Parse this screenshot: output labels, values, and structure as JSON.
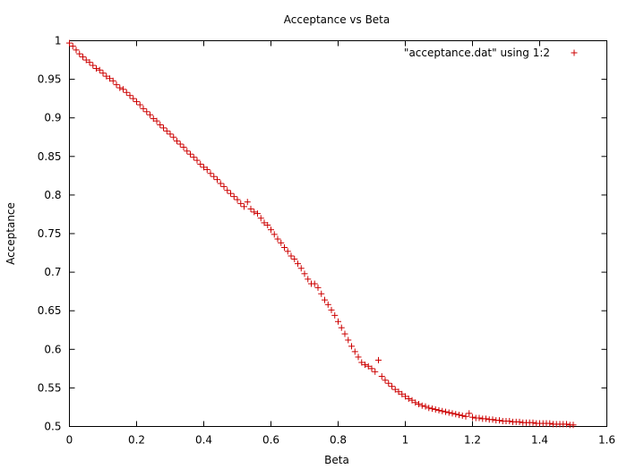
{
  "chart_data": {
    "type": "scatter",
    "title": "Acceptance vs Beta",
    "xlabel": "Beta",
    "ylabel": "Acceptance",
    "xlim": [
      0,
      1.6
    ],
    "ylim": [
      0.5,
      1
    ],
    "xticks": [
      "0",
      "0.2",
      "0.4",
      "0.6",
      "0.8",
      "1",
      "1.2",
      "1.4",
      "1.6"
    ],
    "yticks": [
      "0.5",
      "0.55",
      "0.6",
      "0.65",
      "0.7",
      "0.75",
      "0.8",
      "0.85",
      "0.9",
      "0.95",
      "1"
    ],
    "xtick_values": [
      0,
      0.2,
      0.4,
      0.6,
      0.8,
      1.0,
      1.2,
      1.4,
      1.6
    ],
    "ytick_values": [
      0.5,
      0.55,
      0.6,
      0.65,
      0.7,
      0.75,
      0.8,
      0.85,
      0.9,
      0.95,
      1.0
    ],
    "grid": false,
    "legend_position": "top-right",
    "marker_color": "#cc0000",
    "series": [
      {
        "name": "\"acceptance.dat\" using 1:2",
        "x": [
          0,
          0.01,
          0.02,
          0.03,
          0.04,
          0.05,
          0.06,
          0.07,
          0.08,
          0.09,
          0.1,
          0.11,
          0.12,
          0.13,
          0.14,
          0.15,
          0.16,
          0.17,
          0.18,
          0.19,
          0.2,
          0.21,
          0.22,
          0.23,
          0.24,
          0.25,
          0.26,
          0.27,
          0.28,
          0.29,
          0.3,
          0.31,
          0.32,
          0.33,
          0.34,
          0.35,
          0.36,
          0.37,
          0.38,
          0.39,
          0.4,
          0.41,
          0.42,
          0.43,
          0.44,
          0.45,
          0.46,
          0.47,
          0.48,
          0.49,
          0.5,
          0.51,
          0.52,
          0.53,
          0.54,
          0.55,
          0.56,
          0.57,
          0.58,
          0.59,
          0.6,
          0.61,
          0.62,
          0.63,
          0.64,
          0.65,
          0.66,
          0.67,
          0.68,
          0.69,
          0.7,
          0.71,
          0.72,
          0.73,
          0.74,
          0.75,
          0.76,
          0.77,
          0.78,
          0.79,
          0.8,
          0.81,
          0.82,
          0.83,
          0.84,
          0.85,
          0.86,
          0.87,
          0.88,
          0.89,
          0.9,
          0.91,
          0.92,
          0.93,
          0.94,
          0.95,
          0.96,
          0.97,
          0.98,
          0.99,
          1.0,
          1.01,
          1.02,
          1.03,
          1.04,
          1.05,
          1.06,
          1.07,
          1.08,
          1.09,
          1.1,
          1.11,
          1.12,
          1.13,
          1.14,
          1.15,
          1.16,
          1.17,
          1.18,
          1.19,
          1.2,
          1.21,
          1.22,
          1.23,
          1.24,
          1.25,
          1.26,
          1.27,
          1.28,
          1.29,
          1.3,
          1.31,
          1.32,
          1.33,
          1.34,
          1.35,
          1.36,
          1.37,
          1.38,
          1.39,
          1.4,
          1.41,
          1.42,
          1.43,
          1.44,
          1.45,
          1.46,
          1.47,
          1.48,
          1.49,
          1.5
        ],
        "y": [
          0.997,
          0.993,
          0.988,
          0.983,
          0.979,
          0.975,
          0.972,
          0.968,
          0.964,
          0.962,
          0.958,
          0.954,
          0.951,
          0.948,
          0.943,
          0.939,
          0.937,
          0.933,
          0.929,
          0.925,
          0.921,
          0.917,
          0.912,
          0.908,
          0.904,
          0.899,
          0.896,
          0.891,
          0.887,
          0.883,
          0.879,
          0.875,
          0.87,
          0.866,
          0.862,
          0.857,
          0.853,
          0.849,
          0.845,
          0.84,
          0.836,
          0.833,
          0.828,
          0.824,
          0.82,
          0.815,
          0.811,
          0.806,
          0.802,
          0.798,
          0.794,
          0.789,
          0.785,
          0.791,
          0.782,
          0.778,
          0.776,
          0.77,
          0.764,
          0.761,
          0.755,
          0.749,
          0.743,
          0.738,
          0.732,
          0.727,
          0.721,
          0.717,
          0.711,
          0.705,
          0.698,
          0.691,
          0.685,
          0.685,
          0.68,
          0.672,
          0.664,
          0.658,
          0.651,
          0.644,
          0.636,
          0.628,
          0.62,
          0.612,
          0.604,
          0.597,
          0.59,
          0.583,
          0.58,
          0.578,
          0.575,
          0.571,
          0.586,
          0.565,
          0.56,
          0.556,
          0.552,
          0.548,
          0.545,
          0.542,
          0.539,
          0.536,
          0.534,
          0.531,
          0.529,
          0.527,
          0.526,
          0.524,
          0.523,
          0.522,
          0.521,
          0.52,
          0.519,
          0.518,
          0.517,
          0.516,
          0.515,
          0.514,
          0.513,
          0.517,
          0.512,
          0.511,
          0.511,
          0.51,
          0.51,
          0.509,
          0.509,
          0.508,
          0.508,
          0.507,
          0.507,
          0.507,
          0.506,
          0.506,
          0.506,
          0.505,
          0.505,
          0.505,
          0.505,
          0.504,
          0.504,
          0.504,
          0.504,
          0.504,
          0.503,
          0.503,
          0.503,
          0.503,
          0.503,
          0.502,
          0.502
        ]
      }
    ]
  }
}
